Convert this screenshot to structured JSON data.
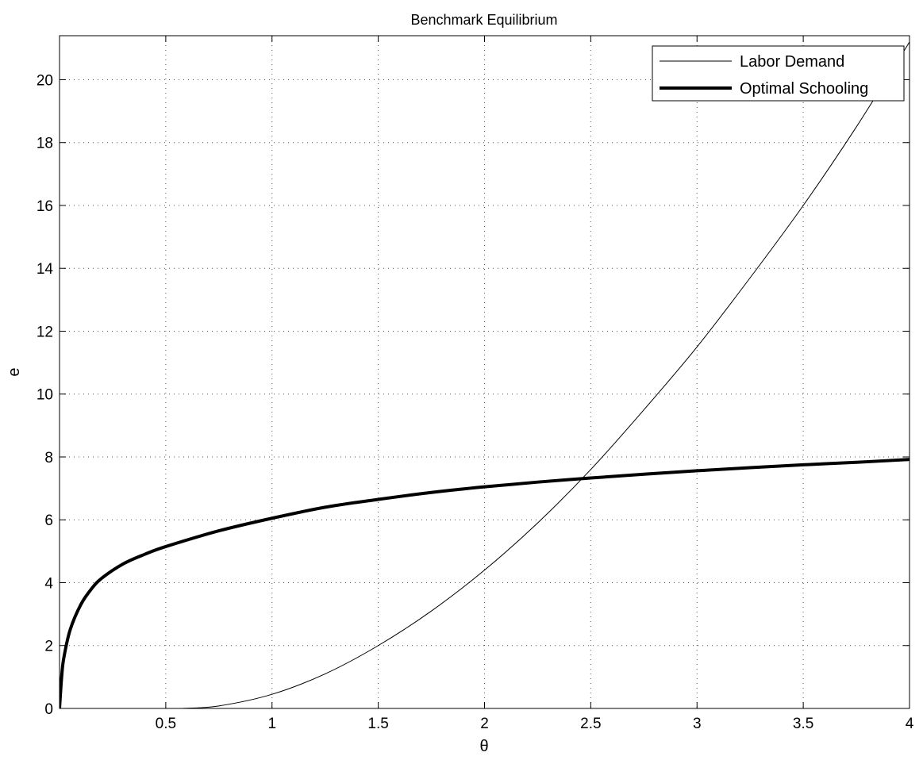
{
  "chart_data": {
    "type": "line",
    "title": "Benchmark Equilibrium",
    "xlabel": "θ",
    "ylabel": "e",
    "xlim": [
      0,
      4
    ],
    "ylim": [
      0,
      21.4
    ],
    "xticks": [
      0.5,
      1,
      1.5,
      2,
      2.5,
      3,
      3.5,
      4
    ],
    "yticks": [
      0,
      2,
      4,
      6,
      8,
      10,
      12,
      14,
      16,
      18,
      20
    ],
    "grid": true,
    "legend_position": "top-right",
    "colors": {
      "line": "#000000",
      "background": "#ffffff"
    },
    "series": [
      {
        "name": "Labor Demand",
        "line_weight": "thin",
        "x": [
          0.58,
          0.75,
          1.0,
          1.25,
          1.5,
          1.75,
          2.0,
          2.25,
          2.5,
          2.75,
          3.0,
          3.25,
          3.5,
          3.75,
          4.0
        ],
        "y": [
          0.0,
          0.08,
          0.45,
          1.1,
          2.0,
          3.1,
          4.4,
          5.9,
          7.6,
          9.5,
          11.5,
          13.7,
          16.0,
          18.5,
          21.2
        ]
      },
      {
        "name": "Optimal Schooling",
        "line_weight": "thick",
        "x": [
          0.0,
          0.01,
          0.02,
          0.05,
          0.1,
          0.15,
          0.2,
          0.3,
          0.4,
          0.5,
          0.75,
          1.0,
          1.25,
          1.5,
          1.75,
          2.0,
          2.25,
          2.5,
          2.75,
          3.0,
          3.25,
          3.5,
          3.75,
          4.0
        ],
        "y": [
          0.0,
          1.0,
          1.6,
          2.5,
          3.3,
          3.8,
          4.15,
          4.6,
          4.9,
          5.15,
          5.65,
          6.05,
          6.4,
          6.65,
          6.87,
          7.05,
          7.2,
          7.33,
          7.45,
          7.56,
          7.66,
          7.75,
          7.83,
          7.92
        ]
      }
    ]
  }
}
